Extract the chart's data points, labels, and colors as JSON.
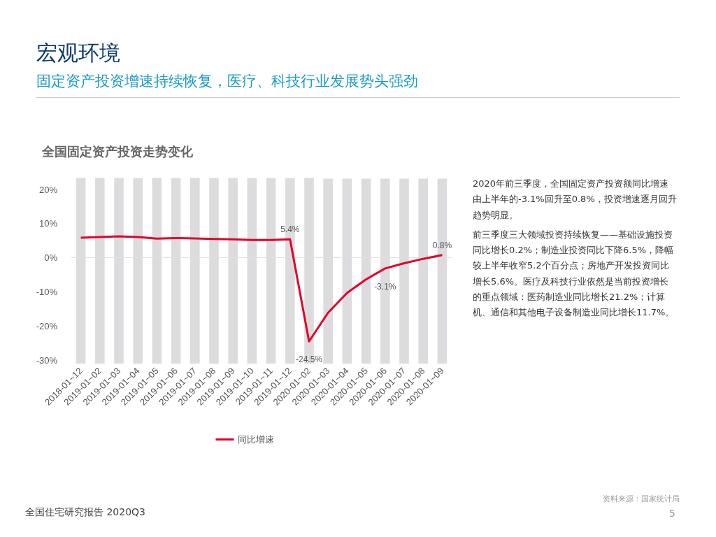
{
  "chart_data": {
    "type": "line",
    "title": "宏观环境",
    "subtitle": "固定资产投资增速持续恢复，医疗、科技行业发展势头强劲",
    "categories": [
      "2018-01~12",
      "2019-01~02",
      "2019-01~03",
      "2019-01~04",
      "2019-01~05",
      "2019-01~06",
      "2019-01~07",
      "2019-01~08",
      "2019-01~09",
      "2019-01~10",
      "2019-01~11",
      "2019-01~12",
      "2020-01~02",
      "2020-01~03",
      "2020-01~04",
      "2020-01~05",
      "2020-01~06",
      "2020-01~07",
      "2020-01~08",
      "2020-01~09"
    ],
    "series": [
      {
        "type": "bar",
        "color": "#dcdcde",
        "base": [
          -31,
          -31,
          -31,
          -31,
          -31,
          -31,
          -31,
          -31,
          -31,
          -31,
          -31,
          -31,
          -31,
          -31,
          -31,
          -31,
          -31,
          -31,
          -31,
          -31
        ],
        "values": [
          54.4,
          54.4,
          54.4,
          54.4,
          54.4,
          54.4,
          54.4,
          54.4,
          54.4,
          54.4,
          54.4,
          54.4,
          54.4,
          54.2,
          54.2,
          54.2,
          54.2,
          54.2,
          54.2,
          54.2
        ]
      },
      {
        "name": "同比增速",
        "color": "#e4002b",
        "values": [
          5.9,
          6.1,
          6.3,
          6.1,
          5.6,
          5.8,
          5.7,
          5.5,
          5.4,
          5.2,
          5.2,
          5.4,
          -24.5,
          -16.1,
          -10.3,
          -6.3,
          -3.1,
          -1.6,
          -0.3,
          0.8
        ],
        "value_labels": [
          null,
          null,
          null,
          null,
          null,
          null,
          null,
          null,
          null,
          null,
          null,
          "5.4%",
          "-24.5%",
          null,
          null,
          null,
          "-3.1%",
          null,
          null,
          "0.8%"
        ]
      }
    ],
    "ylim": [
      -31,
      23.5
    ],
    "yticks": [
      {
        "value": -30,
        "label": "-30%"
      },
      {
        "value": -20,
        "label": "-20%"
      },
      {
        "value": -10,
        "label": "-10%"
      },
      {
        "value": 0,
        "label": "0%"
      },
      {
        "value": 10,
        "label": "10%"
      },
      {
        "value": 20,
        "label": "20%"
      }
    ],
    "ref_lines": [
      {
        "axis": "y",
        "value": 0,
        "color": "#e0e0e0"
      }
    ],
    "grid": false,
    "legend": "bottom",
    "marker": "none",
    "annotations": [
      "全国固定资产投资走势变化",
      "2020年前三季度，全国固定资产投资额同比增速由上半年的-3.1%回升至0.8%，投资增速逐月回升趋势明显。",
      "前三季度三大领域投资持续恢复——基础设施投资同比增长0.2%；制造业投资同比下降6.5%，降幅较上半年收窄5.2个百分点；房地产开发投资同比增长5.6%。医疗及科技行业依然是当前投资增长的重点领域：医药制造业同比增长21.2%；计算机、通信和其他电子设备制造业同比增长11.7%。",
      "全国住宅研究报告 2020Q3",
      "资料来源：国家统计局",
      "5"
    ]
  }
}
